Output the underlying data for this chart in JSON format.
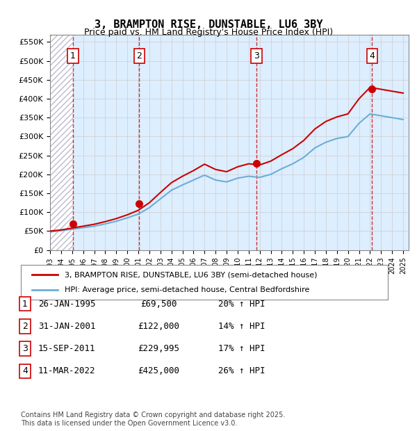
{
  "title": "3, BRAMPTON RISE, DUNSTABLE, LU6 3BY",
  "subtitle": "Price paid vs. HM Land Registry's House Price Index (HPI)",
  "ylabel_ticks": [
    "£0",
    "£50K",
    "£100K",
    "£150K",
    "£200K",
    "£250K",
    "£300K",
    "£350K",
    "£400K",
    "£450K",
    "£500K",
    "£550K"
  ],
  "ytick_values": [
    0,
    50000,
    100000,
    150000,
    200000,
    250000,
    300000,
    350000,
    400000,
    450000,
    500000,
    550000
  ],
  "ylim": [
    0,
    570000
  ],
  "xlim_start": 1993.0,
  "xlim_end": 2025.5,
  "sale_dates": [
    1995.07,
    2001.08,
    2011.71,
    2022.19
  ],
  "sale_prices": [
    69500,
    122000,
    229995,
    425000
  ],
  "sale_labels": [
    "1",
    "2",
    "3",
    "4"
  ],
  "hpi_color": "#6baed6",
  "price_color": "#cc0000",
  "background_color": "#ddeeff",
  "hatch_color": "#aaaacc",
  "grid_color": "#cccccc",
  "legend_entry1": "3, BRAMPTON RISE, DUNSTABLE, LU6 3BY (semi-detached house)",
  "legend_entry2": "HPI: Average price, semi-detached house, Central Bedfordshire",
  "table_rows": [
    [
      "1",
      "26-JAN-1995",
      "£69,500",
      "20% ↑ HPI"
    ],
    [
      "2",
      "31-JAN-2001",
      "£122,000",
      "14% ↑ HPI"
    ],
    [
      "3",
      "15-SEP-2011",
      "£229,995",
      "17% ↑ HPI"
    ],
    [
      "4",
      "11-MAR-2022",
      "£425,000",
      "26% ↑ HPI"
    ]
  ],
  "footer": "Contains HM Land Registry data © Crown copyright and database right 2025.\nThis data is licensed under the Open Government Licence v3.0.",
  "hpi_years": [
    1993,
    1994,
    1995,
    1996,
    1997,
    1998,
    1999,
    2000,
    2001,
    2002,
    2003,
    2004,
    2005,
    2006,
    2007,
    2008,
    2009,
    2010,
    2011,
    2012,
    2013,
    2014,
    2015,
    2016,
    2017,
    2018,
    2019,
    2020,
    2021,
    2022,
    2023,
    2024,
    2025
  ],
  "hpi_values": [
    48000,
    51000,
    55000,
    59000,
    63000,
    69000,
    76000,
    85000,
    95000,
    112000,
    135000,
    158000,
    172000,
    185000,
    198000,
    185000,
    180000,
    190000,
    195000,
    192000,
    200000,
    215000,
    228000,
    245000,
    270000,
    285000,
    295000,
    300000,
    335000,
    360000,
    355000,
    350000,
    345000
  ],
  "price_years": [
    1993,
    1994,
    1995,
    1996,
    1997,
    1998,
    1999,
    2000,
    2001,
    2002,
    2003,
    2004,
    2005,
    2006,
    2007,
    2008,
    2009,
    2010,
    2011,
    2012,
    2013,
    2014,
    2015,
    2016,
    2017,
    2018,
    2019,
    2020,
    2021,
    2022,
    2023,
    2024,
    2025
  ],
  "price_values": [
    50000,
    53000,
    58000,
    63000,
    68000,
    75000,
    83000,
    93000,
    105000,
    125000,
    152000,
    178000,
    195000,
    210000,
    227000,
    213000,
    207000,
    220000,
    228000,
    225000,
    235000,
    252000,
    268000,
    290000,
    320000,
    340000,
    352000,
    360000,
    400000,
    430000,
    425000,
    420000,
    415000
  ]
}
